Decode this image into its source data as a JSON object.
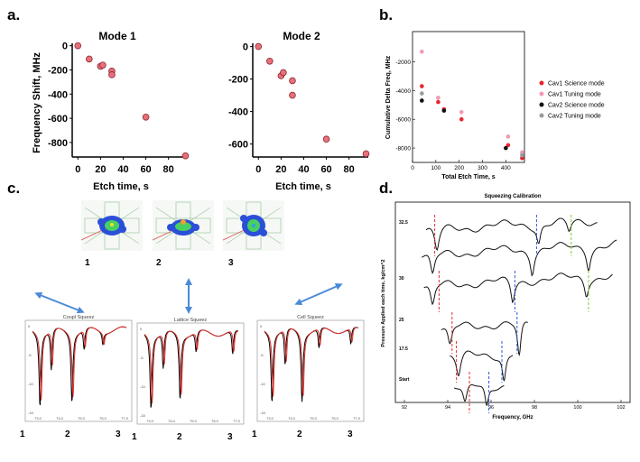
{
  "panel_labels": {
    "a": "a.",
    "b": "b.",
    "c": "c.",
    "d": "d."
  },
  "colors": {
    "mode_marker": "#e8707a",
    "cav1_science": "#e8262e",
    "cav1_tuning": "#f29bb2",
    "cav2_science": "#111111",
    "cav2_tuning": "#9a9a9a",
    "sim_black": "#000000",
    "sim_red": "#e0302a",
    "dash_red": "#e0302a",
    "dash_blue": "#2a5bd7",
    "dash_green": "#7dcf2a",
    "arrow_blue": "#4a8ad8",
    "field_blue": "#2b4fd8",
    "field_green": "#48d060",
    "field_yellow": "#f0e030"
  },
  "panel_c": {
    "mode_numbers": [
      "1",
      "2",
      "3"
    ],
    "sims": [
      {
        "title": "Coupl Squeez",
        "num_labels": [
          "1",
          "2",
          "3"
        ]
      },
      {
        "title": "Lattice Squeez",
        "num_labels": [
          "1",
          "2",
          "3"
        ]
      },
      {
        "title": "Cell Squeez",
        "num_labels": [
          "1",
          "2",
          "3"
        ]
      }
    ],
    "y_ticks": [
      "0",
      "-5",
      "-10",
      "-15"
    ],
    "x_ticks": [
      "73.0",
      "74.0",
      "75.0",
      "76.0",
      "77.0"
    ]
  },
  "chart_data": [
    {
      "type": "scatter",
      "title": "Mode 1",
      "xlabel": "Etch time, s",
      "ylabel": "Frequency Shift, MHz",
      "xlim": [
        -5,
        97
      ],
      "ylim": [
        -920,
        20
      ],
      "xticks": [
        0,
        20,
        40,
        60,
        80
      ],
      "yticks": [
        0,
        -200,
        -400,
        -600,
        -800
      ],
      "x": [
        0,
        10,
        20,
        22,
        30,
        30,
        60,
        95
      ],
      "y": [
        0,
        -110,
        -170,
        -160,
        -210,
        -240,
        -590,
        -910
      ]
    },
    {
      "type": "scatter",
      "title": "Mode 2",
      "xlabel": "Etch time, s",
      "ylabel": "",
      "xlim": [
        -5,
        97
      ],
      "ylim": [
        -680,
        20
      ],
      "xticks": [
        0,
        20,
        40,
        60,
        80
      ],
      "yticks": [
        0,
        -200,
        -400,
        -600
      ],
      "x": [
        0,
        10,
        20,
        22,
        30,
        30,
        60,
        95
      ],
      "y": [
        0,
        -90,
        -180,
        -160,
        -210,
        -300,
        -570,
        -660
      ]
    },
    {
      "type": "scatter",
      "title": "",
      "xlabel": "Total Etch Time, s",
      "ylabel": "Cumulative Delta Freq, MHz",
      "xlim": [
        0,
        480
      ],
      "ylim": [
        -9000,
        100
      ],
      "xticks": [
        0,
        100,
        200,
        300,
        400
      ],
      "yticks": [
        -2000,
        -4000,
        -6000,
        -8000
      ],
      "legend": "right",
      "series": [
        {
          "name": "Cav1 Science mode",
          "color_key": "cav1_science",
          "x": [
            40,
            110,
            135,
            210,
            410,
            470
          ],
          "y": [
            -3700,
            -4800,
            -5300,
            -6000,
            -7800,
            -8700
          ]
        },
        {
          "name": "Cav1 Tuning mode",
          "color_key": "cav1_tuning",
          "x": [
            40,
            110,
            210,
            410,
            470
          ],
          "y": [
            -1300,
            -4500,
            -5500,
            -7200,
            -8300
          ]
        },
        {
          "name": "Cav2 Science mode",
          "color_key": "cav2_science",
          "x": [
            40,
            135,
            400
          ],
          "y": [
            -4700,
            -5400,
            -8000
          ]
        },
        {
          "name": "Cav2 Tuning mode",
          "color_key": "cav2_tuning",
          "x": [
            40,
            470
          ],
          "y": [
            -4200,
            -8500
          ]
        }
      ]
    },
    {
      "type": "line",
      "title": "Squeezing Calibration",
      "xlabel": "Frequency, GHz",
      "ylabel": "Pressure Applied each time, kg/cm^2",
      "xlim": [
        92,
        102
      ],
      "xticks": [
        92,
        94,
        96,
        98,
        100,
        102
      ],
      "series_labels": [
        "32.5",
        "30",
        "25",
        "17.5",
        "Start"
      ]
    }
  ]
}
